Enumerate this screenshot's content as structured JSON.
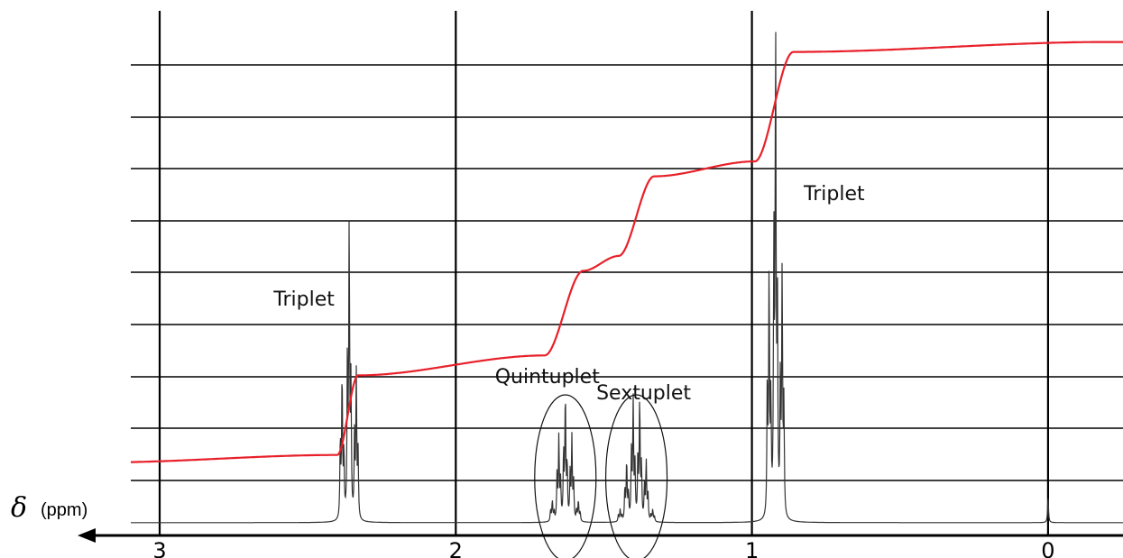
{
  "chart_data": {
    "type": "line",
    "title": "",
    "xlabel_symbol": "δ",
    "xlabel_unit": "(ppm)",
    "xlim": [
      3.2,
      -0.2
    ],
    "x_reversed": true,
    "x_ticks": [
      3,
      2,
      1,
      0
    ],
    "x_tick_labels": [
      "3",
      "2",
      "1",
      "0"
    ],
    "grid_vertical": true,
    "grid_horizontal": true,
    "horizontal_grid_count": 9,
    "colors": {
      "spectrum": "#333333",
      "integral": "#e8202a",
      "grid": "#000000"
    },
    "peaks": [
      {
        "label": "Triplet",
        "center": 2.36,
        "spacing": 0.024,
        "intensities": [
          1,
          2,
          1
        ],
        "relative_height": 0.58
      },
      {
        "label": "Quintuplet",
        "center": 1.63,
        "spacing": 0.022,
        "intensities": [
          1,
          4,
          6,
          4,
          1
        ],
        "relative_height": 0.25
      },
      {
        "label": "Sextuplet",
        "center": 1.39,
        "spacing": 0.022,
        "intensities": [
          1,
          5,
          10,
          10,
          5,
          1
        ],
        "relative_height": 0.24
      },
      {
        "label": "Triplet",
        "center": 0.92,
        "spacing": 0.022,
        "intensities": [
          1,
          2,
          1
        ],
        "relative_height": 0.97
      },
      {
        "label": "",
        "center": 0.0,
        "spacing": 0.0,
        "intensities": [
          1
        ],
        "relative_height": 0.05
      }
    ],
    "integral": {
      "x": [
        3.2,
        2.4,
        2.33,
        1.7,
        1.57,
        1.45,
        1.33,
        0.99,
        0.86,
        -0.2
      ],
      "y_frac": [
        0.125,
        0.14,
        0.3,
        0.34,
        0.51,
        0.54,
        0.7,
        0.73,
        0.95,
        0.97
      ]
    },
    "annotations": [
      {
        "text": "Triplet",
        "x": 2.36
      },
      {
        "text": "Quintuplet",
        "x": 1.63
      },
      {
        "text": "Sextuplet",
        "x": 1.39
      },
      {
        "text": "Triplet",
        "x": 0.92
      }
    ]
  }
}
